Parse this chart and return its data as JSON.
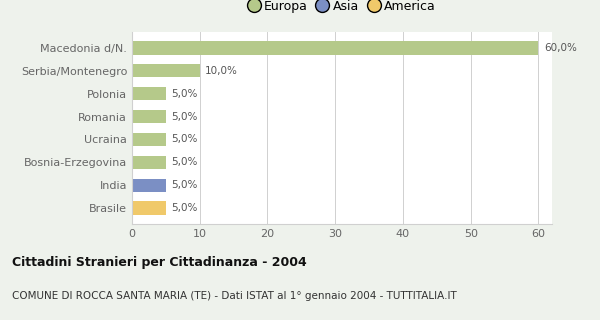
{
  "categories": [
    "Brasile",
    "India",
    "Bosnia-Erzegovina",
    "Ucraina",
    "Romania",
    "Polonia",
    "Serbia/Montenegro",
    "Macedonia d/N."
  ],
  "values": [
    5.0,
    5.0,
    5.0,
    5.0,
    5.0,
    5.0,
    10.0,
    60.0
  ],
  "colors": [
    "#f0c96a",
    "#7b8fc4",
    "#b5c98a",
    "#b5c98a",
    "#b5c98a",
    "#b5c98a",
    "#b5c98a",
    "#b5c98a"
  ],
  "labels": [
    "5,0%",
    "5,0%",
    "5,0%",
    "5,0%",
    "5,0%",
    "5,0%",
    "10,0%",
    "60,0%"
  ],
  "legend": [
    {
      "label": "Europa",
      "color": "#b5c98a"
    },
    {
      "label": "Asia",
      "color": "#7b8fc4"
    },
    {
      "label": "America",
      "color": "#f0c96a"
    }
  ],
  "xlim": [
    0,
    62
  ],
  "xticks": [
    0,
    10,
    20,
    30,
    40,
    50,
    60
  ],
  "title_bold": "Cittadini Stranieri per Cittadinanza - 2004",
  "subtitle": "COMUNE DI ROCCA SANTA MARIA (TE) - Dati ISTAT al 1° gennaio 2004 - TUTTITALIA.IT",
  "bar_height": 0.6,
  "background_color": "#eef2ec",
  "plot_bg_color": "#ffffff",
  "grid_color": "#d0d0d0",
  "label_color": "#555555",
  "tick_label_color": "#666666"
}
